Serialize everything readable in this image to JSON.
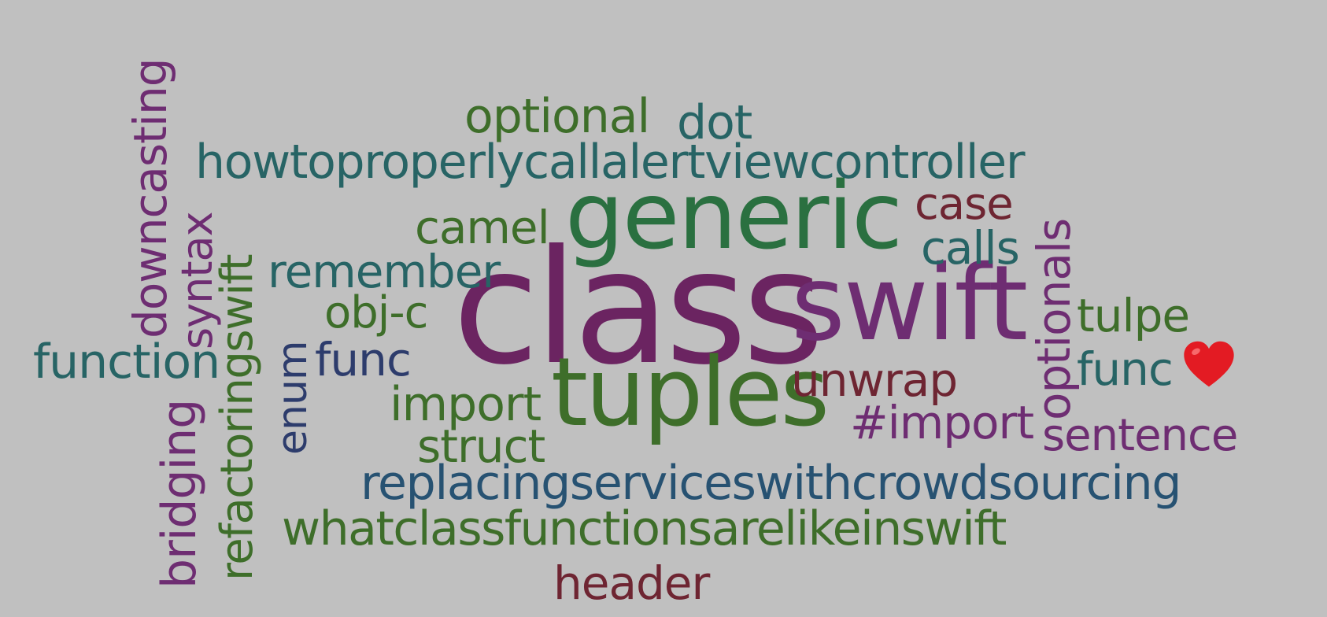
{
  "words": {
    "class": "class",
    "swift": "swift",
    "generic": "generic",
    "tuples": "tuples",
    "howto": "howtoproperlycallalertviewcontroller",
    "replacing": "replacingserviceswithcrowdsourcing",
    "whatclass": "whatclassfunctionsarelikeinswift",
    "optional": "optional",
    "dot": "dot",
    "camel": "camel",
    "remember": "remember",
    "objc": "obj-c",
    "func_left": "func",
    "function": "function",
    "import": "import",
    "struct": "struct",
    "case": "case",
    "calls": "calls",
    "tulpe": "tulpe",
    "func_right": "func",
    "unwrap": "unwrap",
    "hash_import": "#import",
    "sentence": "sentence",
    "header": "header",
    "downcasting": "downcasting",
    "syntax": "syntax",
    "refactoringswift": "refactoringswift",
    "bridging": "bridging",
    "enum": "enum",
    "optionals": "optionals"
  },
  "colors": {
    "purple": "#6b2461",
    "violet": "#6e2d72",
    "green": "#3e6e2a",
    "darkgreen": "#2a7040",
    "teal": "#276465",
    "blue": "#275272",
    "navy": "#2d3c6c",
    "maroon": "#6e2532",
    "heart": "#e31b23"
  },
  "icons": {
    "heart": "heart-icon"
  }
}
